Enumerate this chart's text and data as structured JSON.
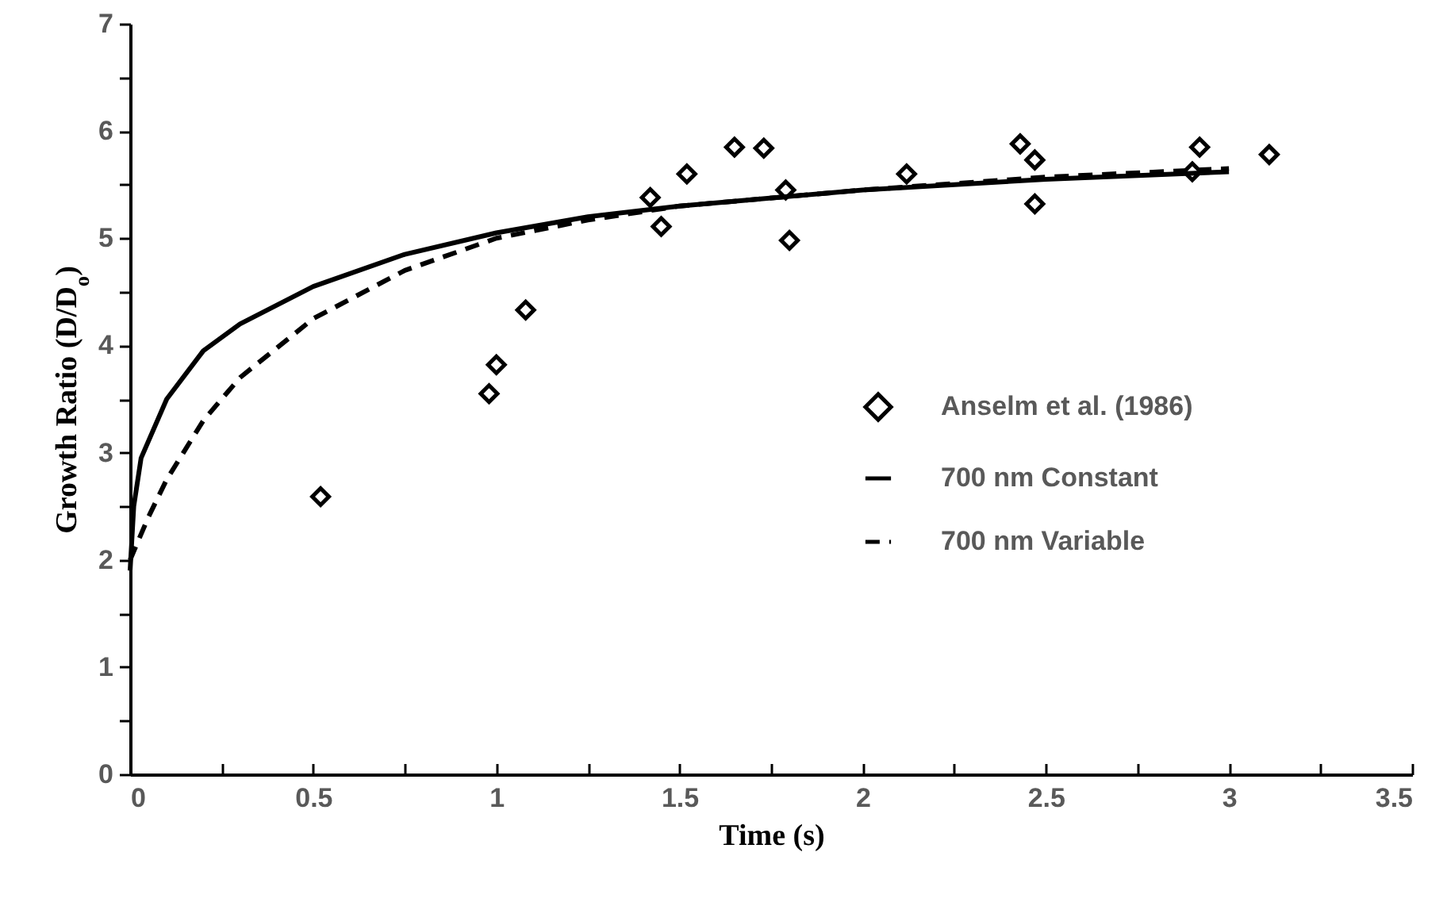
{
  "chart_data": {
    "type": "line",
    "xlabel": "Time (s)",
    "ylabel": "Growth Ratio (D/D$_{o}$)",
    "xlim": [
      0,
      3.5
    ],
    "ylim": [
      0,
      7
    ],
    "xticks": [
      0,
      {
        "value": 0.25,
        "label": null
      },
      0.5,
      {
        "value": 0.75,
        "label": null
      },
      1,
      {
        "value": 1.25,
        "label": null
      },
      1.5,
      {
        "value": 1.75,
        "label": null
      },
      2,
      {
        "value": 2.25,
        "label": null
      },
      2.5,
      {
        "value": 2.75,
        "label": null
      },
      3,
      {
        "value": 3.25,
        "label": null
      },
      3.5
    ],
    "yticks": [
      0,
      {
        "value": 0.5,
        "label": null
      },
      1,
      {
        "value": 1.5,
        "label": null
      },
      2,
      {
        "value": 2.5,
        "label": null
      },
      3,
      {
        "value": 3.5,
        "label": null
      },
      4,
      {
        "value": 4.5,
        "label": null
      },
      5,
      {
        "value": 5.5,
        "label": null
      },
      6,
      {
        "value": 6.5,
        "label": null
      },
      7
    ],
    "legend": "right",
    "series": [
      {
        "name": "Anselm et al. (1986)",
        "type": "scatter",
        "marker": "diamond",
        "color": "#000000",
        "x": [
          0.52,
          0.98,
          1.0,
          1.08,
          1.42,
          1.45,
          1.52,
          1.65,
          1.73,
          1.79,
          1.8,
          2.12,
          2.43,
          2.47,
          2.47,
          2.9,
          2.92,
          3.11
        ],
        "values": [
          2.59,
          3.55,
          3.82,
          4.33,
          5.38,
          5.11,
          5.6,
          5.85,
          5.84,
          5.45,
          4.98,
          5.6,
          5.88,
          5.73,
          5.32,
          5.62,
          5.85,
          5.78
        ]
      },
      {
        "name": "700 nm Constant",
        "line_style": "solid",
        "color": "#000000",
        "x": [
          0,
          0.01,
          0.03,
          0.1,
          0.2,
          0.3,
          0.5,
          0.75,
          1.0,
          1.25,
          1.5,
          2.0,
          2.5,
          3.0
        ],
        "values": [
          1.9,
          2.5,
          2.95,
          3.5,
          3.95,
          4.2,
          4.55,
          4.85,
          5.05,
          5.2,
          5.3,
          5.45,
          5.55,
          5.62
        ]
      },
      {
        "name": "700 nm Variable",
        "line_style": "dashed",
        "color": "#000000",
        "x": [
          0,
          0.05,
          0.1,
          0.2,
          0.3,
          0.5,
          0.75,
          1.0,
          1.25,
          1.5,
          2.0,
          2.5,
          3.0
        ],
        "values": [
          2.0,
          2.4,
          2.75,
          3.3,
          3.7,
          4.25,
          4.7,
          5.0,
          5.17,
          5.3,
          5.45,
          5.57,
          5.65
        ]
      }
    ]
  }
}
